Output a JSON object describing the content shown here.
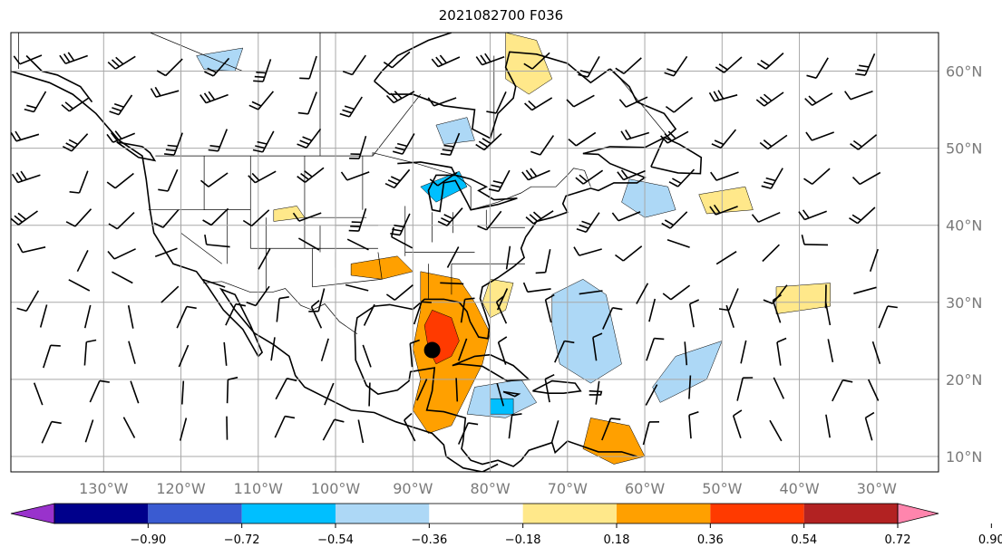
{
  "title": "2021082700 F036",
  "lon_ticks": [
    {
      "lon": -130,
      "label": "130°W"
    },
    {
      "lon": -120,
      "label": "120°W"
    },
    {
      "lon": -110,
      "label": "110°W"
    },
    {
      "lon": -100,
      "label": "100°W"
    },
    {
      "lon": -90,
      "label": "90°W"
    },
    {
      "lon": -80,
      "label": "80°W"
    },
    {
      "lon": -70,
      "label": "70°W"
    },
    {
      "lon": -60,
      "label": "60°W"
    },
    {
      "lon": -50,
      "label": "50°W"
    },
    {
      "lon": -40,
      "label": "40°W"
    },
    {
      "lon": -30,
      "label": "30°W"
    }
  ],
  "lat_ticks": [
    {
      "lat": 60,
      "label": "60°N"
    },
    {
      "lat": 50,
      "label": "50°N"
    },
    {
      "lat": 40,
      "label": "40°N"
    },
    {
      "lat": 30,
      "label": "30°N"
    },
    {
      "lat": 20,
      "label": "20°N"
    },
    {
      "lat": 10,
      "label": "10°N"
    }
  ],
  "extent": {
    "lon_min": -142,
    "lon_max": -22,
    "lat_min": 8,
    "lat_max": 65
  },
  "colorbar": {
    "levels": [
      "−0.90",
      "−0.72",
      "−0.54",
      "−0.36",
      "−0.18",
      "0.18",
      "0.36",
      "0.54",
      "0.72",
      "0.90"
    ],
    "colors": [
      "#9932cc",
      "#00008b",
      "#3a5bd1",
      "#00bfff",
      "#add8f6",
      "#ffffff",
      "#ffe88a",
      "#ffa000",
      "#ff3a00",
      "#b22222",
      "#ff85ad"
    ]
  },
  "storm_marker": {
    "lon": -87.5,
    "lat": 23.8,
    "color": "#000000"
  }
}
